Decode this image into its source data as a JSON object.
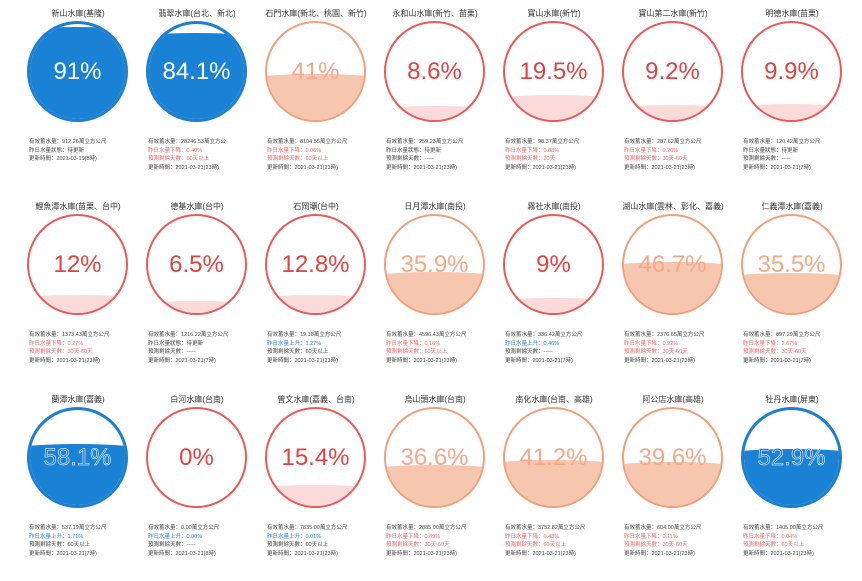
{
  "reservoirs": [
    {
      "name": "新山水庫(基隆)",
      "percent": "91%",
      "level": 0.91,
      "style": "blue",
      "storage": "有效蓄水量：912.26萬立方公尺",
      "delta": "昨日水量狀態：待更新",
      "delta_dir": "none",
      "frac": "",
      "updated": "更新時間：2021-03-19(8時)"
    },
    {
      "name": "翡翠水庫(台北、新北)",
      "percent": "84.1%",
      "level": 0.841,
      "style": "blue",
      "storage": "有效蓄水量：28246.53萬立方公",
      "delta": "昨日水量下降：0.40%",
      "delta_dir": "down",
      "frac": "預測剩餘天數：60天以上",
      "updated": "更新時間：2021-03-21(23時)"
    },
    {
      "name": "石門水庫(新北、桃園、新竹)",
      "percent": "41%",
      "level": 0.41,
      "style": "orange",
      "storage": "有效蓄水量：8104.55萬立方公尺",
      "delta": "昨日水量下降：0.06%",
      "delta_dir": "down",
      "frac": "預測剩餘天數：60天以上",
      "updated": "更新時間：2021-03-21(23時)"
    },
    {
      "name": "永和山水庫(新竹、苗栗)",
      "percent": "8.6%",
      "level": 0.086,
      "style": "red",
      "storage": "有效蓄水量：259.23萬立方公尺",
      "delta": "昨日水量狀態：待更新",
      "delta_dir": "none",
      "frac": "預測剩餘天數：-----",
      "updated": "更新時間：2021-03-21(23時)"
    },
    {
      "name": "寶山水庫(新竹)",
      "percent": "19.5%",
      "level": 0.195,
      "style": "red",
      "storage": "有效蓄水量：98.37萬立方公尺",
      "delta": "昨日水量下降：0.88%",
      "delta_dir": "down",
      "frac": "預測剩餘天數：20天",
      "updated": "更新時間：2021-03-21(23時)"
    },
    {
      "name": "寶山第二水庫(新竹)",
      "percent": "9.2%",
      "level": 0.092,
      "style": "red",
      "storage": "有效蓄水量：287.62萬立方公尺",
      "delta": "昨日水量下降：0.20%",
      "delta_dir": "down",
      "frac": "預測剩餘天數：30天-60天",
      "updated": "更新時間：2021-03-21(23時)"
    },
    {
      "name": "明德水庫(苗栗)",
      "percent": "9.9%",
      "level": 0.099,
      "style": "red",
      "storage": "有效蓄水量：120.42萬立方公尺",
      "delta": "昨日水量狀態：待更新",
      "delta_dir": "none",
      "frac": "預測剩餘天數：-----",
      "updated": "更新時間：2021-03-21(7時)"
    },
    {
      "name": "鯉魚潭水庫(苗栗、台中)",
      "percent": "12%",
      "level": 0.12,
      "style": "red",
      "storage": "有效蓄水量：1373.43萬立方公尺",
      "delta": "昨日水量下降：0.27%",
      "delta_dir": "down",
      "frac": "預測剩餘天數：30天-60天",
      "updated": "更新時間：2021-03-21(23時)"
    },
    {
      "name": "德基水庫(台中)",
      "percent": "6.5%",
      "level": 0.065,
      "style": "red",
      "storage": "有效蓄水量：1216.22萬立方公尺",
      "delta": "昨日水量狀態：待更新",
      "delta_dir": "none",
      "frac": "預測剩餘天數：-----",
      "updated": "更新時間：2021-03-21(7時)"
    },
    {
      "name": "石岡壩(台中)",
      "percent": "12.8%",
      "level": 0.128,
      "style": "red",
      "storage": "有效蓄水量：19.18萬立方公尺",
      "delta": "昨日水量上升：1.27%",
      "delta_dir": "up",
      "frac": "預測剩餘天數：60天以上",
      "updated": "更新時間：2021-03-21(23時)"
    },
    {
      "name": "日月潭水庫(南投)",
      "percent": "35.9%",
      "level": 0.359,
      "style": "orange",
      "storage": "有效蓄水量：4596.43萬立方公尺",
      "delta": "昨日水量下降：0.16%",
      "delta_dir": "down",
      "frac": "預測剩餘天數：60天以上",
      "updated": "更新時間：2021-03-21(23時)"
    },
    {
      "name": "霧社水庫(南投)",
      "percent": "9%",
      "level": 0.09,
      "style": "red",
      "storage": "有效蓄水量：336.42萬立方公尺",
      "delta": "昨日水量上升：0.46%",
      "delta_dir": "up",
      "frac": "預測剩餘天數：-----",
      "updated": "更新時間：2021-03-21(7時)"
    },
    {
      "name": "湖山水庫(雲林、彰化、嘉義)",
      "percent": "46.7%",
      "level": 0.467,
      "style": "orange",
      "storage": "有效蓄水量：2376.65萬立方公尺",
      "delta": "昨日水量下降：0.92%",
      "delta_dir": "down",
      "frac": "預測剩餘天數：30天-60天",
      "updated": "更新時間：2021-03-21(23時)"
    },
    {
      "name": "仁義潭水庫(嘉義)",
      "percent": "35.5%",
      "level": 0.355,
      "style": "orange",
      "storage": "有效蓄水量：897.29萬立方公尺",
      "delta": "昨日水量下降：2.67%",
      "delta_dir": "down",
      "frac": "預測剩餘天數：30天-60天",
      "updated": "更新時間：2021-03-21(7時)"
    },
    {
      "name": "蘭潭水庫(嘉義)",
      "percent": "58.1%",
      "level": 0.581,
      "style": "blue",
      "storage": "有效蓄水量：537.19萬立方公尺",
      "delta": "昨日水量上升：1.71%",
      "delta_dir": "up",
      "frac": "預測剩餘天數：60天以上",
      "updated": "更新時間：2021-03-21(7時)"
    },
    {
      "name": "白河水庫(台南)",
      "percent": "0%",
      "level": 0.0,
      "style": "red",
      "storage": "有效蓄水量：0.00萬立方公尺",
      "delta": "昨日水量上升：0.00%",
      "delta_dir": "up",
      "frac": "預測剩餘天數：-----",
      "updated": "更新時間：2021-03-21(8時)"
    },
    {
      "name": "曾文水庫(嘉義、台南)",
      "percent": "15.4%",
      "level": 0.154,
      "style": "red",
      "storage": "有效蓄水量：7835.00萬立方公尺",
      "delta": "昨日水量上升：0.01%",
      "delta_dir": "up",
      "frac": "預測剩餘天數：60天以上",
      "updated": "更新時間：2021-03-21(23時)"
    },
    {
      "name": "烏山頭水庫(台南)",
      "percent": "36.6%",
      "level": 0.366,
      "style": "orange",
      "storage": "有效蓄水量：2885.00萬立方公尺",
      "delta": "昨日水量下降：0.89%",
      "delta_dir": "down",
      "frac": "預測剩餘天數：30天-60天",
      "updated": "更新時間：2021-03-21(23時)"
    },
    {
      "name": "南化水庫(台南、高雄)",
      "percent": "41.2%",
      "level": 0.412,
      "style": "orange",
      "storage": "有效蓄水量：3752.82萬立方公尺",
      "delta": "昨日水量下降：0.48%",
      "delta_dir": "down",
      "frac": "預測剩餘天數：60天以上",
      "updated": "更新時間：2021-03-21(23時)"
    },
    {
      "name": "阿公店水庫(高雄)",
      "percent": "39.6%",
      "level": 0.396,
      "style": "orange",
      "storage": "有效蓄水量：604.00萬立方公尺",
      "delta": "昨日水量下降：0.11%",
      "delta_dir": "down",
      "frac": "預測剩餘天數：30天-60天",
      "updated": "更新時間：2021-03-21(23時)"
    },
    {
      "name": "牡丹水庫(屏東)",
      "percent": "52.9%",
      "level": 0.529,
      "style": "blue",
      "storage": "有效蓄水量：1405.00萬立方公尺",
      "delta": "昨日水量下降：0.04%",
      "delta_dir": "down",
      "frac": "預測剩餘天數：60天以上",
      "updated": "更新時間：2021-03-21(23時)"
    }
  ]
}
